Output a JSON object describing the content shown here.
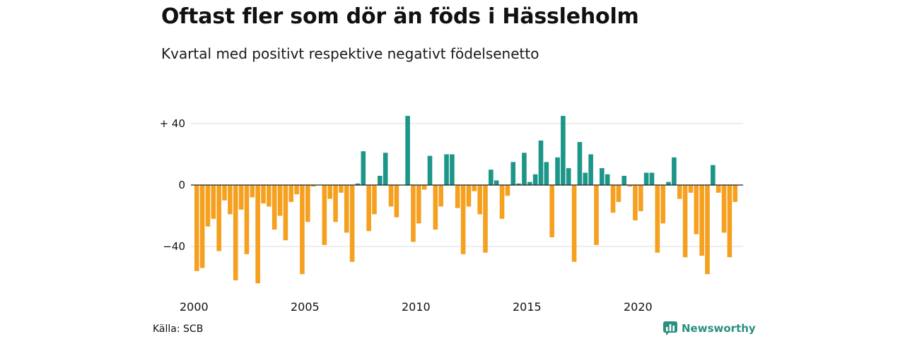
{
  "header": {
    "title": "Oftast fler som dör än föds i Hässleholm",
    "subtitle": "Kvartal med positivt respektive negativt födelsenetto"
  },
  "footer": {
    "source": "Källa: SCB",
    "brand": "Newsworthy"
  },
  "colors": {
    "positive": "#1b9688",
    "negative": "#f5a01f",
    "grid": "#dddddd",
    "zero_line": "#222222",
    "brand": "#2a8f80"
  },
  "icons": [
    "newsworthy-logo-icon"
  ],
  "chart_data": {
    "type": "bar",
    "xlabel": "",
    "ylabel": "",
    "ylim": [
      -66,
      46
    ],
    "yticks": [
      {
        "value": 40,
        "label": "+ 40"
      },
      {
        "value": 0,
        "label": "0"
      },
      {
        "value": -40,
        "label": "−40"
      }
    ],
    "xticks": [
      "2000",
      "2005",
      "2010",
      "2015",
      "2020"
    ],
    "grid": true,
    "start_year": 2000,
    "values": [
      -56,
      -54,
      -27,
      -22,
      -43,
      -10,
      -19,
      -62,
      -16,
      -45,
      -8,
      -64,
      -12,
      -14,
      -29,
      -20,
      -36,
      -11,
      -6,
      -58,
      -24,
      -1,
      0,
      -39,
      -9,
      -24,
      -5,
      -31,
      -50,
      1,
      22,
      -30,
      -19,
      6,
      21,
      -14,
      -21,
      0,
      45,
      -37,
      -25,
      -3,
      19,
      -29,
      -14,
      20,
      20,
      -15,
      -45,
      -14,
      -4,
      -19,
      -44,
      10,
      3,
      -22,
      -7,
      15,
      1,
      21,
      2,
      7,
      29,
      15,
      -34,
      18,
      45,
      11,
      -50,
      28,
      8,
      20,
      -39,
      11,
      7,
      -18,
      -11,
      6,
      -1,
      -23,
      -17,
      8,
      8,
      -44,
      -25,
      2,
      18,
      -9,
      -47,
      -5,
      -32,
      -46,
      -58,
      13,
      -5,
      -31,
      -47,
      -11
    ]
  }
}
